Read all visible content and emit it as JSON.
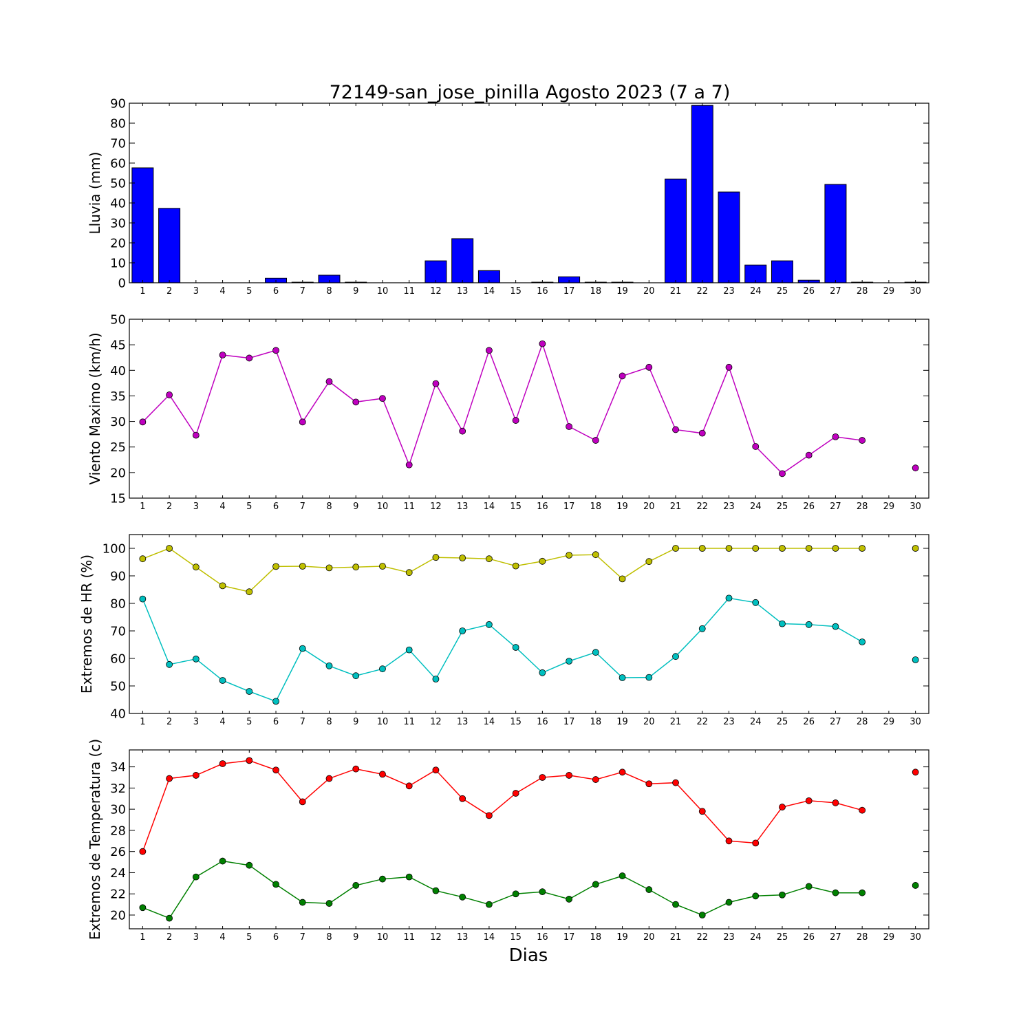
{
  "title": "72149-san_jose_pinilla Agosto 2023  (7 a 7)",
  "xlabel": "Dias",
  "colors": {
    "rain": "#0000ff",
    "wind": "#bf00bf",
    "hr_max": "#bfbf00",
    "hr_min": "#00bfbf",
    "temp_max": "#ff0000",
    "temp_min": "#008000"
  },
  "chart_data": [
    {
      "type": "bar",
      "ylabel": "Lluvia (mm)",
      "ylim": [
        0,
        90
      ],
      "yticks": [
        0,
        10,
        20,
        30,
        40,
        50,
        60,
        70,
        80,
        90
      ],
      "categories": [
        1,
        2,
        3,
        4,
        5,
        6,
        7,
        8,
        9,
        10,
        11,
        12,
        13,
        14,
        15,
        16,
        17,
        18,
        19,
        20,
        21,
        22,
        23,
        24,
        25,
        26,
        27,
        28,
        29,
        30
      ],
      "values": [
        57.6,
        37.3,
        0,
        0,
        0,
        2.3,
        0.3,
        3.8,
        0.3,
        0,
        0,
        11.0,
        22.1,
        6.1,
        0,
        0.3,
        3.0,
        0.3,
        0.3,
        0,
        52.0,
        88.9,
        45.5,
        8.9,
        11.0,
        1.3,
        49.3,
        0.3,
        0,
        0.3
      ]
    },
    {
      "type": "line",
      "ylabel": "Viento Maximo (km/h)",
      "ylim": [
        15,
        50
      ],
      "yticks": [
        15,
        20,
        25,
        30,
        35,
        40,
        45,
        50
      ],
      "x": [
        1,
        2,
        3,
        4,
        5,
        6,
        7,
        8,
        9,
        10,
        11,
        12,
        13,
        14,
        15,
        16,
        17,
        18,
        19,
        20,
        21,
        22,
        23,
        24,
        25,
        26,
        27,
        28,
        29,
        30
      ],
      "series": [
        {
          "color": "#bf00bf",
          "values": [
            29.9,
            35.2,
            27.3,
            43.0,
            42.4,
            43.9,
            29.9,
            37.8,
            33.8,
            34.5,
            21.5,
            37.4,
            28.1,
            43.9,
            30.2,
            45.2,
            29.0,
            26.3,
            38.9,
            40.6,
            28.4,
            27.7,
            40.6,
            25.1,
            19.8,
            23.4,
            27.0,
            26.3,
            null,
            20.9
          ]
        }
      ]
    },
    {
      "type": "line",
      "ylabel": "Extremos de HR (%)",
      "ylim": [
        40,
        105
      ],
      "yticks": [
        40,
        50,
        60,
        70,
        80,
        90,
        100
      ],
      "x": [
        1,
        2,
        3,
        4,
        5,
        6,
        7,
        8,
        9,
        10,
        11,
        12,
        13,
        14,
        15,
        16,
        17,
        18,
        19,
        20,
        21,
        22,
        23,
        24,
        25,
        26,
        27,
        28,
        29,
        30
      ],
      "series": [
        {
          "color": "#bfbf00",
          "values": [
            96.2,
            100,
            93.2,
            86.4,
            84.2,
            93.4,
            93.5,
            92.9,
            93.2,
            93.5,
            91.2,
            96.7,
            96.5,
            96.2,
            93.6,
            95.3,
            97.5,
            97.7,
            88.9,
            95.2,
            100,
            100,
            100,
            100,
            100,
            100,
            100,
            100,
            null,
            100
          ]
        },
        {
          "color": "#00bfbf",
          "values": [
            81.6,
            57.8,
            59.8,
            52.0,
            48.0,
            44.4,
            63.6,
            57.3,
            53.7,
            56.2,
            63.1,
            52.5,
            70.0,
            72.3,
            64.0,
            54.8,
            59.0,
            62.2,
            53.0,
            53.1,
            60.7,
            70.8,
            81.9,
            80.3,
            72.6,
            72.3,
            71.6,
            66.0,
            null,
            59.5
          ]
        }
      ]
    },
    {
      "type": "line",
      "ylabel": "Extremos de Temperatura (c)",
      "ylim": [
        18.7,
        35.6
      ],
      "yticks": [
        20,
        22,
        24,
        26,
        28,
        30,
        32,
        34
      ],
      "x": [
        1,
        2,
        3,
        4,
        5,
        6,
        7,
        8,
        9,
        10,
        11,
        12,
        13,
        14,
        15,
        16,
        17,
        18,
        19,
        20,
        21,
        22,
        23,
        24,
        25,
        26,
        27,
        28,
        29,
        30
      ],
      "series": [
        {
          "color": "#ff0000",
          "values": [
            26.0,
            32.9,
            33.2,
            34.3,
            34.6,
            33.7,
            30.7,
            32.9,
            33.8,
            33.3,
            32.2,
            33.7,
            31.0,
            29.4,
            31.5,
            33.0,
            33.2,
            32.8,
            33.5,
            32.4,
            32.5,
            29.8,
            27.0,
            26.8,
            30.2,
            30.8,
            30.6,
            29.9,
            null,
            33.5
          ]
        },
        {
          "color": "#008000",
          "values": [
            20.7,
            19.7,
            23.6,
            25.1,
            24.7,
            22.9,
            21.2,
            21.1,
            22.8,
            23.4,
            23.6,
            22.3,
            21.7,
            21.0,
            22.0,
            22.2,
            21.5,
            22.9,
            23.7,
            22.4,
            21.0,
            20.0,
            21.2,
            21.8,
            21.9,
            22.7,
            22.1,
            22.1,
            null,
            22.8
          ]
        }
      ]
    }
  ]
}
